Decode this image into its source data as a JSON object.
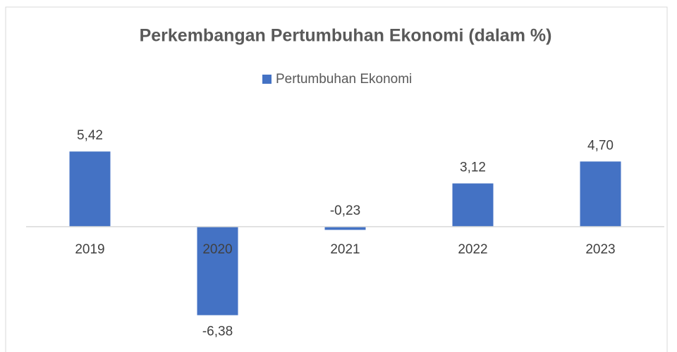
{
  "chart_data": {
    "type": "bar",
    "title": "Perkembangan Pertumbuhan Ekonomi (dalam %)",
    "categories": [
      "2019",
      "2020",
      "2021",
      "2022",
      "2023"
    ],
    "series": [
      {
        "name": "Pertumbuhan Ekonomi",
        "color": "#4472c4",
        "values": [
          5.42,
          -6.38,
          -0.23,
          3.12,
          4.7
        ],
        "value_labels": [
          "5,42",
          "-6,38",
          "-0,23",
          "3,12",
          "4,70"
        ]
      }
    ]
  }
}
